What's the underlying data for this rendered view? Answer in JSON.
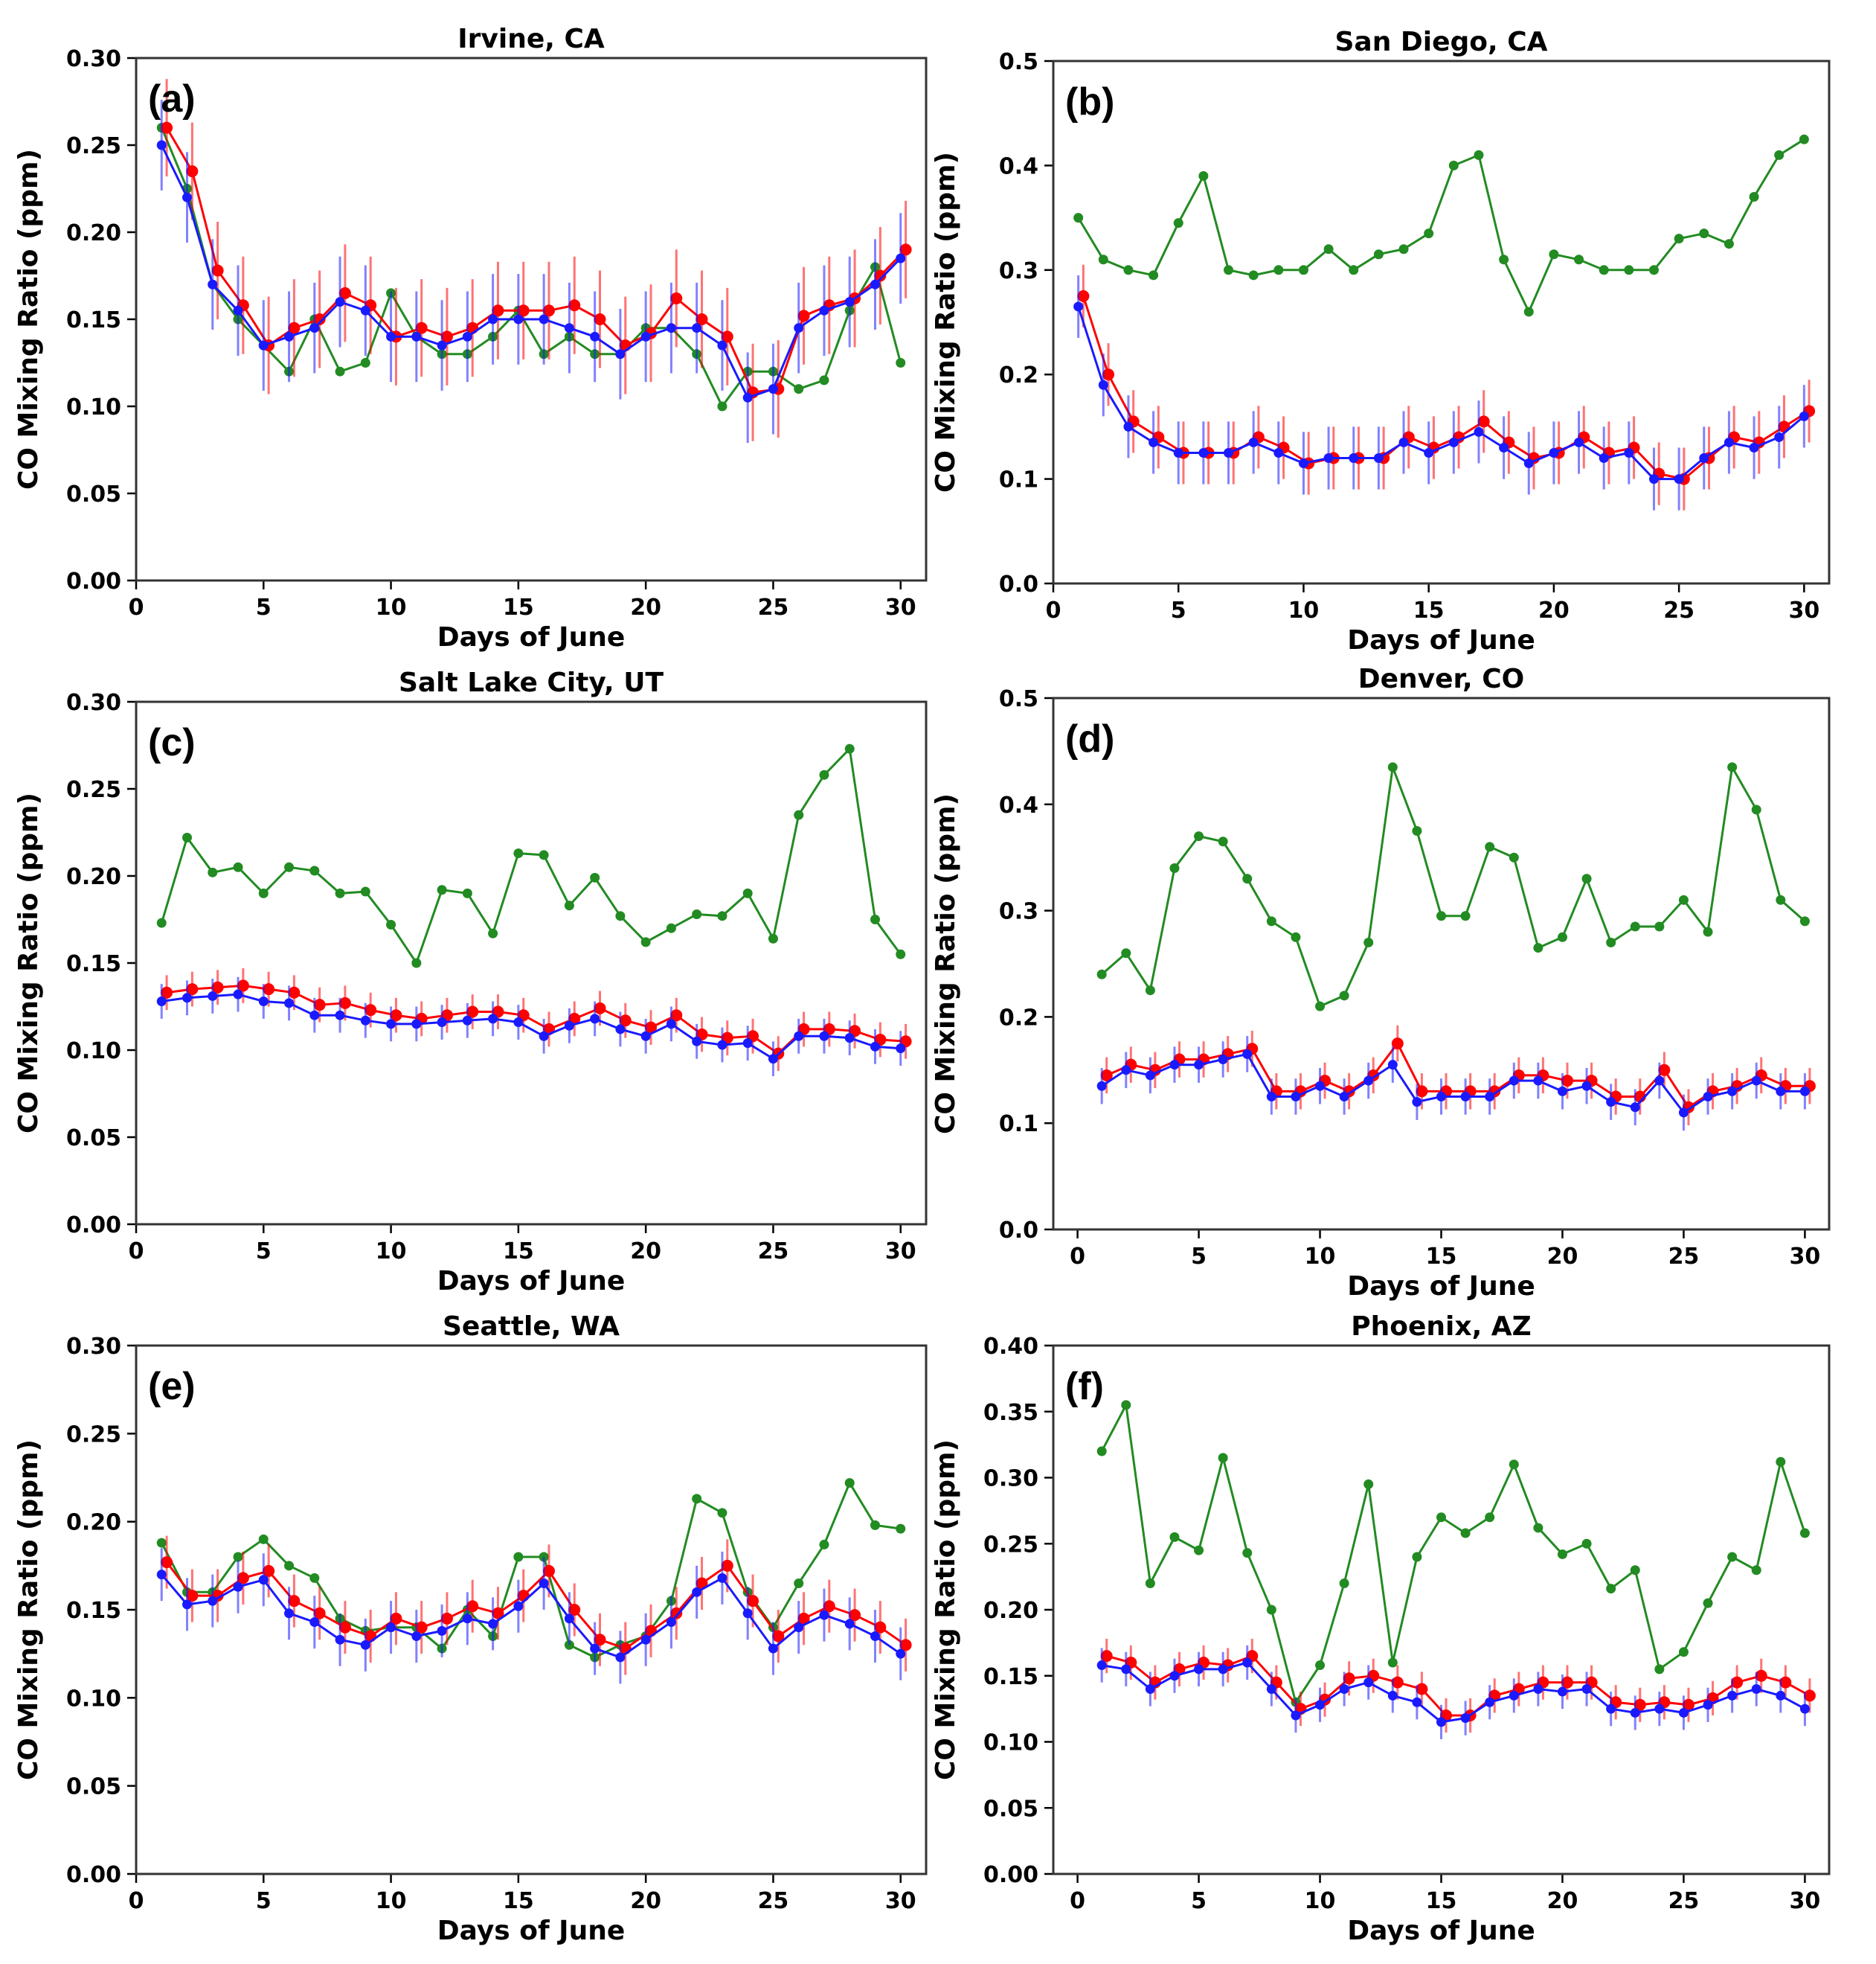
{
  "figure": {
    "series_colors": {
      "green": "#228B22",
      "red": "#ff0000",
      "blue": "#1a1aff"
    }
  },
  "chart_data": [
    {
      "type": "line",
      "panel_label": "(a)",
      "title": "Irvine, CA",
      "xlabel": "Days of June",
      "ylabel": "CO Mixing Ratio (ppm)",
      "xlim": [
        0,
        31
      ],
      "ylim": [
        0,
        0.3
      ],
      "xticks": [
        0,
        5,
        10,
        15,
        20,
        25,
        30
      ],
      "xtick_labels": [
        "0",
        "5",
        "10",
        "15",
        "20",
        "25",
        "30"
      ],
      "yticks": [
        0,
        0.05,
        0.1,
        0.15,
        0.2,
        0.25,
        0.3
      ],
      "ytick_labels": [
        "0.00",
        "0.05",
        "0.10",
        "0.15",
        "0.20",
        "0.25",
        "0.30"
      ],
      "series": [
        {
          "name": "green",
          "color": "#228B22",
          "x_offset": 0,
          "error": 0,
          "values": [
            0.26,
            0.225,
            0.17,
            0.15,
            0.135,
            0.12,
            0.15,
            0.12,
            0.125,
            0.165,
            0.14,
            0.13,
            0.13,
            0.14,
            0.155,
            0.13,
            0.14,
            0.13,
            0.13,
            0.145,
            0.145,
            0.13,
            0.1,
            0.12,
            0.12,
            0.11,
            0.115,
            0.155,
            0.18,
            0.125
          ]
        },
        {
          "name": "red",
          "color": "#ff0000",
          "x_offset": 0.2,
          "error": 0.028,
          "values": [
            0.26,
            0.235,
            0.178,
            0.158,
            0.135,
            0.145,
            0.15,
            0.165,
            0.158,
            0.14,
            0.145,
            0.14,
            0.145,
            0.155,
            0.155,
            0.155,
            0.158,
            0.15,
            0.135,
            0.142,
            0.162,
            0.15,
            0.14,
            0.108,
            0.11,
            0.152,
            0.158,
            0.162,
            0.175,
            0.19
          ]
        },
        {
          "name": "blue",
          "color": "#1a1aff",
          "x_offset": 0,
          "error": 0.026,
          "values": [
            0.25,
            0.22,
            0.17,
            0.155,
            0.135,
            0.14,
            0.145,
            0.16,
            0.155,
            0.14,
            0.14,
            0.135,
            0.14,
            0.15,
            0.15,
            0.15,
            0.145,
            0.14,
            0.13,
            0.14,
            0.145,
            0.145,
            0.135,
            0.105,
            0.11,
            0.145,
            0.155,
            0.16,
            0.17,
            0.185
          ]
        }
      ]
    },
    {
      "type": "line",
      "panel_label": "(b)",
      "title": "San Diego, CA",
      "xlabel": "Days of June",
      "ylabel": "CO Mixing Ratio (ppm)",
      "xlim": [
        0,
        31
      ],
      "ylim": [
        0,
        0.5
      ],
      "xticks": [
        0,
        5,
        10,
        15,
        20,
        25,
        30
      ],
      "xtick_labels": [
        "0",
        "5",
        "10",
        "15",
        "20",
        "25",
        "30"
      ],
      "yticks": [
        0,
        0.1,
        0.2,
        0.3,
        0.4,
        0.5
      ],
      "ytick_labels": [
        "0.0",
        "0.1",
        "0.2",
        "0.3",
        "0.4",
        "0.5"
      ],
      "series": [
        {
          "name": "green",
          "color": "#228B22",
          "x_offset": 0,
          "error": 0,
          "values": [
            0.35,
            0.31,
            0.3,
            0.295,
            0.345,
            0.39,
            0.3,
            0.295,
            0.3,
            0.3,
            0.32,
            0.3,
            0.315,
            0.32,
            0.335,
            0.4,
            0.41,
            0.31,
            0.26,
            0.315,
            0.31,
            0.3,
            0.3,
            0.3,
            0.33,
            0.335,
            0.325,
            0.37,
            0.41,
            0.425
          ]
        },
        {
          "name": "red",
          "color": "#ff0000",
          "x_offset": 0.2,
          "error": 0.03,
          "values": [
            0.275,
            0.2,
            0.155,
            0.14,
            0.125,
            0.125,
            0.125,
            0.14,
            0.13,
            0.115,
            0.12,
            0.12,
            0.12,
            0.14,
            0.13,
            0.14,
            0.155,
            0.135,
            0.12,
            0.125,
            0.14,
            0.125,
            0.13,
            0.105,
            0.1,
            0.12,
            0.14,
            0.135,
            0.15,
            0.165
          ]
        },
        {
          "name": "blue",
          "color": "#1a1aff",
          "x_offset": 0,
          "error": 0.03,
          "values": [
            0.265,
            0.19,
            0.15,
            0.135,
            0.125,
            0.125,
            0.125,
            0.135,
            0.125,
            0.115,
            0.12,
            0.12,
            0.12,
            0.135,
            0.125,
            0.135,
            0.145,
            0.13,
            0.115,
            0.125,
            0.135,
            0.12,
            0.125,
            0.1,
            0.1,
            0.12,
            0.135,
            0.13,
            0.14,
            0.16
          ]
        }
      ]
    },
    {
      "type": "line",
      "panel_label": "(c)",
      "title": "Salt Lake City, UT",
      "xlabel": "Days of June",
      "ylabel": "CO Mixing Ratio (ppm)",
      "xlim": [
        0,
        31
      ],
      "ylim": [
        0,
        0.3
      ],
      "xticks": [
        0,
        5,
        10,
        15,
        20,
        25,
        30
      ],
      "xtick_labels": [
        "0",
        "5",
        "10",
        "15",
        "20",
        "25",
        "30"
      ],
      "yticks": [
        0,
        0.05,
        0.1,
        0.15,
        0.2,
        0.25,
        0.3
      ],
      "ytick_labels": [
        "0.00",
        "0.05",
        "0.10",
        "0.15",
        "0.20",
        "0.25",
        "0.30"
      ],
      "series": [
        {
          "name": "green",
          "color": "#228B22",
          "x_offset": 0,
          "error": 0,
          "values": [
            0.173,
            0.222,
            0.202,
            0.205,
            0.19,
            0.205,
            0.203,
            0.19,
            0.191,
            0.172,
            0.15,
            0.192,
            0.19,
            0.167,
            0.213,
            0.212,
            0.183,
            0.199,
            0.177,
            0.162,
            0.17,
            0.178,
            0.177,
            0.19,
            0.164,
            0.235,
            0.258,
            0.273,
            0.175,
            0.155
          ]
        },
        {
          "name": "red",
          "color": "#ff0000",
          "x_offset": 0.2,
          "error": 0.01,
          "values": [
            0.133,
            0.135,
            0.136,
            0.137,
            0.135,
            0.133,
            0.126,
            0.127,
            0.123,
            0.12,
            0.118,
            0.12,
            0.122,
            0.122,
            0.12,
            0.112,
            0.118,
            0.124,
            0.117,
            0.113,
            0.12,
            0.109,
            0.107,
            0.108,
            0.098,
            0.112,
            0.112,
            0.111,
            0.106,
            0.105
          ]
        },
        {
          "name": "blue",
          "color": "#1a1aff",
          "x_offset": 0,
          "error": 0.01,
          "values": [
            0.128,
            0.13,
            0.131,
            0.132,
            0.128,
            0.127,
            0.12,
            0.12,
            0.117,
            0.115,
            0.115,
            0.116,
            0.117,
            0.118,
            0.116,
            0.108,
            0.114,
            0.118,
            0.112,
            0.108,
            0.115,
            0.105,
            0.103,
            0.104,
            0.095,
            0.108,
            0.108,
            0.107,
            0.102,
            0.101
          ]
        }
      ]
    },
    {
      "type": "line",
      "panel_label": "(d)",
      "title": "Denver, CO",
      "xlabel": "Days of June",
      "ylabel": "CO Mixing Ratio (ppm)",
      "xlim": [
        -1,
        31
      ],
      "ylim": [
        0,
        0.5
      ],
      "xticks": [
        0,
        5,
        10,
        15,
        20,
        25,
        30
      ],
      "xtick_labels": [
        "0",
        "5",
        "10",
        "15",
        "20",
        "25",
        "30"
      ],
      "yticks": [
        0,
        0.1,
        0.2,
        0.3,
        0.4,
        0.5
      ],
      "ytick_labels": [
        "0.0",
        "0.1",
        "0.2",
        "0.3",
        "0.4",
        "0.5"
      ],
      "series": [
        {
          "name": "green",
          "color": "#228B22",
          "x_offset": 0,
          "error": 0,
          "values": [
            0.24,
            0.26,
            0.225,
            0.34,
            0.37,
            0.365,
            0.33,
            0.29,
            0.275,
            0.21,
            0.22,
            0.27,
            0.435,
            0.375,
            0.295,
            0.295,
            0.36,
            0.35,
            0.265,
            0.275,
            0.33,
            0.27,
            0.285,
            0.285,
            0.31,
            0.28,
            0.435,
            0.395,
            0.31,
            0.29
          ]
        },
        {
          "name": "red",
          "color": "#ff0000",
          "x_offset": 0.2,
          "error": 0.017,
          "values": [
            0.145,
            0.155,
            0.15,
            0.16,
            0.16,
            0.165,
            0.17,
            0.13,
            0.13,
            0.14,
            0.13,
            0.145,
            0.175,
            0.13,
            0.13,
            0.13,
            0.13,
            0.145,
            0.145,
            0.14,
            0.14,
            0.125,
            0.125,
            0.15,
            0.115,
            0.13,
            0.135,
            0.145,
            0.135,
            0.135
          ]
        },
        {
          "name": "blue",
          "color": "#1a1aff",
          "x_offset": 0,
          "error": 0.017,
          "values": [
            0.135,
            0.15,
            0.145,
            0.155,
            0.155,
            0.16,
            0.165,
            0.125,
            0.125,
            0.135,
            0.125,
            0.14,
            0.155,
            0.12,
            0.125,
            0.125,
            0.125,
            0.14,
            0.14,
            0.13,
            0.135,
            0.12,
            0.115,
            0.14,
            0.11,
            0.125,
            0.13,
            0.14,
            0.13,
            0.13
          ]
        }
      ]
    },
    {
      "type": "line",
      "panel_label": "(e)",
      "title": "Seattle, WA",
      "xlabel": "Days of June",
      "ylabel": "CO Mixing Ratio (ppm)",
      "xlim": [
        0,
        31
      ],
      "ylim": [
        0,
        0.3
      ],
      "xticks": [
        0,
        5,
        10,
        15,
        20,
        25,
        30
      ],
      "xtick_labels": [
        "0",
        "5",
        "10",
        "15",
        "20",
        "25",
        "30"
      ],
      "yticks": [
        0,
        0.05,
        0.1,
        0.15,
        0.2,
        0.25,
        0.3
      ],
      "ytick_labels": [
        "0.00",
        "0.05",
        "0.10",
        "0.15",
        "0.20",
        "0.25",
        "0.30"
      ],
      "series": [
        {
          "name": "green",
          "color": "#228B22",
          "x_offset": 0,
          "error": 0,
          "values": [
            0.188,
            0.16,
            0.16,
            0.18,
            0.19,
            0.175,
            0.168,
            0.145,
            0.138,
            0.14,
            0.14,
            0.128,
            0.15,
            0.135,
            0.18,
            0.18,
            0.13,
            0.123,
            0.13,
            0.135,
            0.155,
            0.213,
            0.205,
            0.16,
            0.14,
            0.165,
            0.187,
            0.222,
            0.198,
            0.196
          ]
        },
        {
          "name": "red",
          "color": "#ff0000",
          "x_offset": 0.2,
          "error": 0.015,
          "values": [
            0.177,
            0.158,
            0.158,
            0.168,
            0.172,
            0.155,
            0.148,
            0.14,
            0.135,
            0.145,
            0.14,
            0.145,
            0.152,
            0.148,
            0.158,
            0.172,
            0.15,
            0.133,
            0.128,
            0.138,
            0.148,
            0.165,
            0.175,
            0.155,
            0.135,
            0.145,
            0.152,
            0.147,
            0.14,
            0.13
          ]
        },
        {
          "name": "blue",
          "color": "#1a1aff",
          "x_offset": 0,
          "error": 0.015,
          "values": [
            0.17,
            0.153,
            0.155,
            0.163,
            0.167,
            0.148,
            0.143,
            0.133,
            0.13,
            0.14,
            0.135,
            0.138,
            0.145,
            0.142,
            0.152,
            0.165,
            0.145,
            0.128,
            0.123,
            0.133,
            0.143,
            0.16,
            0.168,
            0.148,
            0.128,
            0.14,
            0.147,
            0.142,
            0.135,
            0.125
          ]
        }
      ]
    },
    {
      "type": "line",
      "panel_label": "(f)",
      "title": "Phoenix, AZ",
      "xlabel": "Days of June",
      "ylabel": "CO Mixing Ratio (ppm)",
      "xlim": [
        -1,
        31
      ],
      "ylim": [
        0,
        0.4
      ],
      "xticks": [
        0,
        5,
        10,
        15,
        20,
        25,
        30
      ],
      "xtick_labels": [
        "0",
        "5",
        "10",
        "15",
        "20",
        "25",
        "30"
      ],
      "yticks": [
        0,
        0.05,
        0.1,
        0.15,
        0.2,
        0.25,
        0.3,
        0.35,
        0.4
      ],
      "ytick_labels": [
        "0.00",
        "0.05",
        "0.10",
        "0.15",
        "0.20",
        "0.25",
        "0.30",
        "0.35",
        "0.40"
      ],
      "series": [
        {
          "name": "green",
          "color": "#228B22",
          "x_offset": 0,
          "error": 0,
          "values": [
            0.32,
            0.355,
            0.22,
            0.255,
            0.245,
            0.315,
            0.243,
            0.2,
            0.13,
            0.158,
            0.22,
            0.295,
            0.16,
            0.24,
            0.27,
            0.258,
            0.27,
            0.31,
            0.262,
            0.242,
            0.25,
            0.216,
            0.23,
            0.155,
            0.168,
            0.205,
            0.24,
            0.23,
            0.312,
            0.258
          ]
        },
        {
          "name": "red",
          "color": "#ff0000",
          "x_offset": 0.2,
          "error": 0.013,
          "values": [
            0.165,
            0.16,
            0.145,
            0.155,
            0.16,
            0.158,
            0.165,
            0.145,
            0.125,
            0.132,
            0.148,
            0.15,
            0.145,
            0.14,
            0.12,
            0.12,
            0.135,
            0.14,
            0.145,
            0.145,
            0.145,
            0.13,
            0.128,
            0.13,
            0.128,
            0.133,
            0.145,
            0.15,
            0.145,
            0.135
          ]
        },
        {
          "name": "blue",
          "color": "#1a1aff",
          "x_offset": 0,
          "error": 0.013,
          "values": [
            0.158,
            0.155,
            0.14,
            0.15,
            0.155,
            0.155,
            0.16,
            0.14,
            0.12,
            0.128,
            0.14,
            0.145,
            0.135,
            0.13,
            0.115,
            0.118,
            0.13,
            0.135,
            0.14,
            0.138,
            0.14,
            0.125,
            0.122,
            0.125,
            0.122,
            0.128,
            0.135,
            0.14,
            0.135,
            0.125
          ]
        }
      ]
    }
  ]
}
